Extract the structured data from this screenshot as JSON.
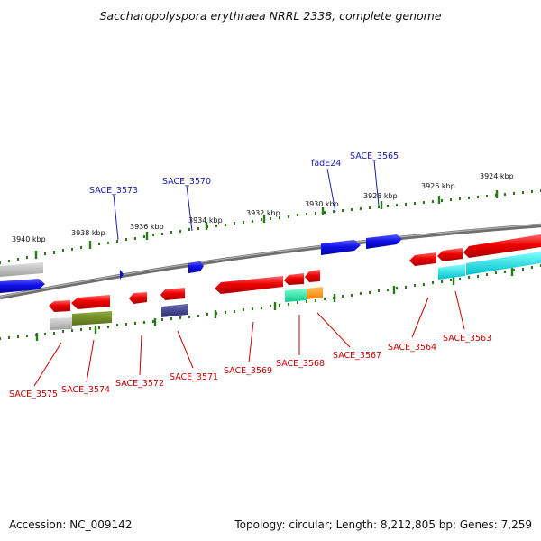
{
  "title": "Saccharopolyspora erythraea NRRL 2338, complete genome",
  "footer": {
    "accession": "Accession: NC_009142",
    "stats": "Topology: circular; Length: 8,212,805 bp; Genes: 7,259"
  },
  "colors": {
    "forward_gene": "#1010e0",
    "reverse_gene": "#e00000",
    "tick": "#2a7a1a",
    "backbone": "#808080",
    "gene_label": "#c80000",
    "feature_label": "#1a1aa8",
    "cyan_feature": "#00e0e8",
    "olive_feature": "#6e8a22",
    "slate_feature": "#3a3a80",
    "teal_feature": "#20e0a0",
    "orange_feature": "#ff9a20",
    "gray_feature": "#b8b8b8"
  },
  "scale_labels": [
    "3940 kbp",
    "3938 kbp",
    "3936 kbp",
    "3934 kbp",
    "3932 kbp",
    "3930 kbp",
    "3928 kbp",
    "3926 kbp",
    "3924 kbp"
  ],
  "forward_labels": [
    "SACE_3573",
    "SACE_3570",
    "fadE24",
    "SACE_3565"
  ],
  "reverse_labels": [
    "SACE_3575",
    "SACE_3574",
    "SACE_3572",
    "SACE_3571",
    "SACE_3569",
    "SACE_3568",
    "SACE_3567",
    "SACE_3564",
    "SACE_3563"
  ]
}
